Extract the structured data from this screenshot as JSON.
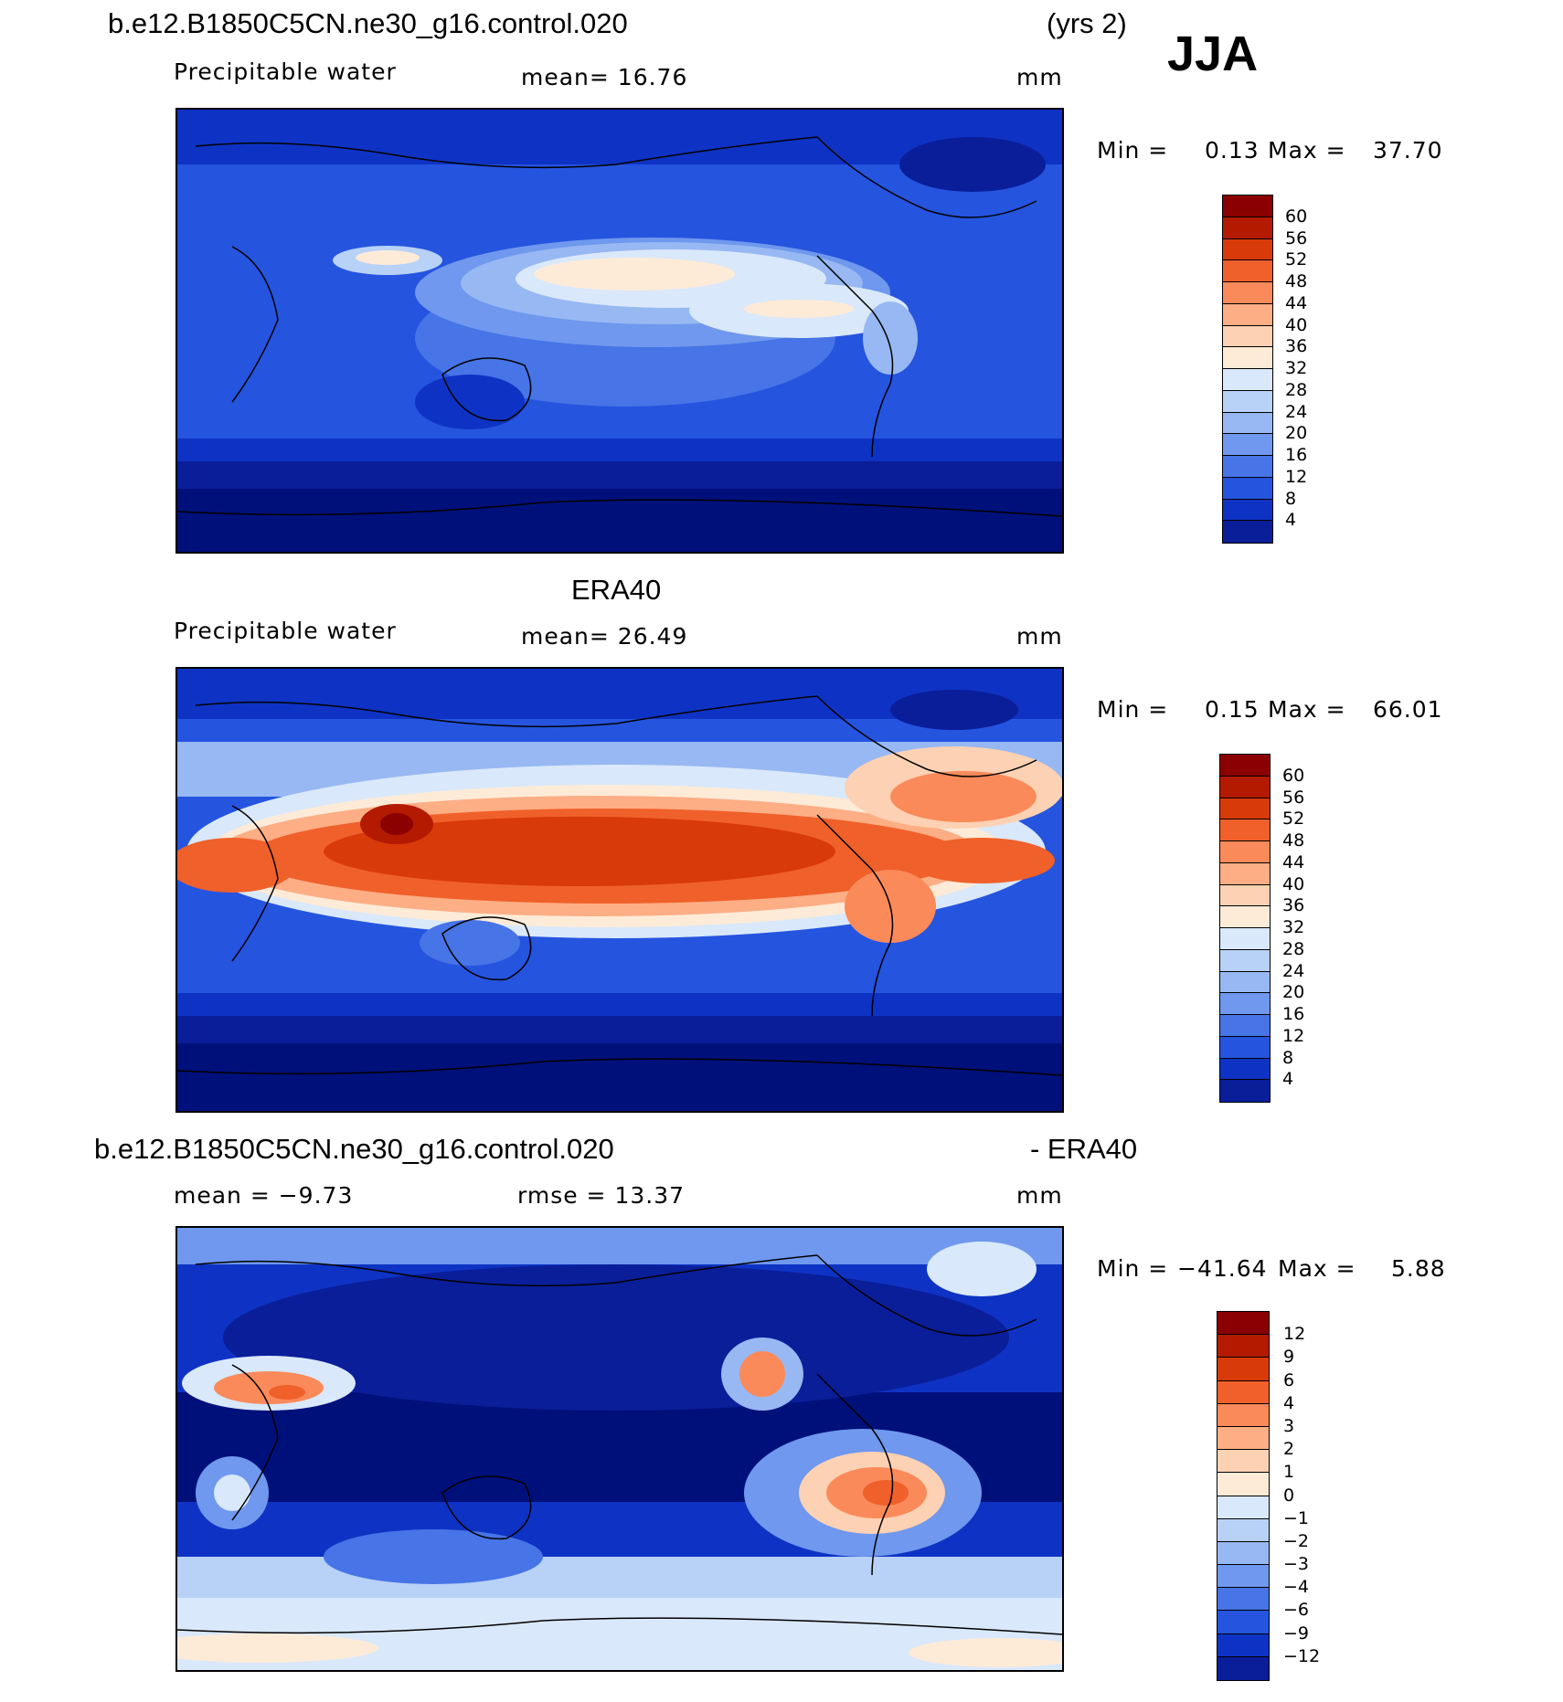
{
  "header": {
    "case_name": "b.e12.B1850C5CN.ne30_g16.control.020",
    "years": "(yrs 2)",
    "season": "JJA"
  },
  "panels": [
    {
      "title": "",
      "variable": "Precipitable water",
      "stat_left": "mean=   16.76",
      "stat_right": "",
      "units": "mm",
      "min_label": "Min =",
      "min_value": "0.13",
      "max_label": "Max =",
      "max_value": "37.70",
      "colorbar": [
        "60",
        "56",
        "52",
        "48",
        "44",
        "40",
        "36",
        "32",
        "28",
        "24",
        "20",
        "16",
        "12",
        "8",
        "4"
      ]
    },
    {
      "title": "ERA40",
      "variable": "Precipitable water",
      "stat_left": "mean=   26.49",
      "stat_right": "",
      "units": "mm",
      "min_label": "Min =",
      "min_value": "0.15",
      "max_label": "Max =",
      "max_value": "66.01",
      "colorbar": [
        "60",
        "56",
        "52",
        "48",
        "44",
        "40",
        "36",
        "32",
        "28",
        "24",
        "20",
        "16",
        "12",
        "8",
        "4"
      ]
    },
    {
      "title": "b.e12.B1850C5CN.ne30_g16.control.020",
      "title_right": "- ERA40",
      "variable": "",
      "stat_left": "mean =   −9.73",
      "stat_right": "rmse =   13.37",
      "units": "mm",
      "min_label": "Min =",
      "min_value": "−41.64",
      "max_label": "Max =",
      "max_value": "5.88",
      "colorbar": [
        "12",
        "9",
        "6",
        "4",
        "3",
        "2",
        "1",
        "0",
        "−1",
        "−2",
        "−3",
        "−4",
        "−6",
        "−9",
        "−12"
      ]
    }
  ],
  "palette": [
    "#8b0000",
    "#b31a00",
    "#d93a0a",
    "#f0602a",
    "#fb8a5a",
    "#fdae85",
    "#fdd1b3",
    "#fdebd8",
    "#d9e8fa",
    "#b8d1f7",
    "#97b8f2",
    "#6f98ee",
    "#4774e6",
    "#2554df",
    "#0e33c4",
    "#0a1e99",
    "#00107a"
  ],
  "colors": {
    "land_outline": "#000000"
  },
  "chart_data": [
    {
      "type": "heatmap",
      "title": "Precipitable water",
      "case": "b.e12.B1850C5CN.ne30_g16.control.020",
      "units": "mm",
      "mean": 16.76,
      "min": 0.13,
      "max": 37.7,
      "contour_levels": [
        4,
        8,
        12,
        16,
        20,
        24,
        28,
        32,
        36,
        40,
        44,
        48,
        52,
        56,
        60
      ]
    },
    {
      "type": "heatmap",
      "title": "ERA40",
      "units": "mm",
      "mean": 26.49,
      "min": 0.15,
      "max": 66.01,
      "contour_levels": [
        4,
        8,
        12,
        16,
        20,
        24,
        28,
        32,
        36,
        40,
        44,
        48,
        52,
        56,
        60
      ]
    },
    {
      "type": "heatmap",
      "title": "b.e12.B1850C5CN.ne30_g16.control.020 - ERA40",
      "units": "mm",
      "mean": -9.73,
      "rmse": 13.37,
      "min": -41.64,
      "max": 5.88,
      "contour_levels": [
        -12,
        -9,
        -6,
        -4,
        -3,
        -2,
        -1,
        0,
        1,
        2,
        3,
        4,
        6,
        9,
        12
      ]
    }
  ]
}
